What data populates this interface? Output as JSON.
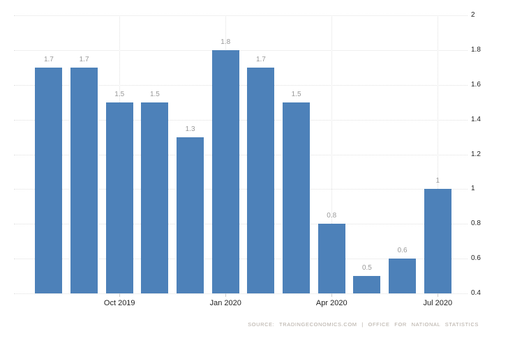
{
  "chart_data": {
    "type": "bar",
    "title": "",
    "xlabel": "",
    "ylabel": "",
    "values": [
      1.7,
      1.7,
      1.5,
      1.5,
      1.3,
      1.8,
      1.7,
      1.5,
      0.8,
      0.5,
      0.6,
      1
    ],
    "bar_labels": [
      "1.7",
      "1.7",
      "1.5",
      "1.5",
      "1.3",
      "1.8",
      "1.7",
      "1.5",
      "0.8",
      "0.5",
      "0.6",
      "1"
    ],
    "x_ticks": [
      {
        "index": 2,
        "label": "Oct 2019"
      },
      {
        "index": 5,
        "label": "Jan 2020"
      },
      {
        "index": 8,
        "label": "Apr 2020"
      },
      {
        "index": 11,
        "label": "Jul 2020"
      }
    ],
    "y_ticks": [
      {
        "value": 0.4,
        "label": "0.4"
      },
      {
        "value": 0.6,
        "label": "0.6"
      },
      {
        "value": 0.8,
        "label": "0.8"
      },
      {
        "value": 1,
        "label": "1"
      },
      {
        "value": 1.2,
        "label": "1.2"
      },
      {
        "value": 1.4,
        "label": "1.4"
      },
      {
        "value": 1.6,
        "label": "1.6"
      },
      {
        "value": 1.8,
        "label": "1.8"
      },
      {
        "value": 2,
        "label": "2"
      }
    ],
    "ylim": [
      0.4,
      2
    ],
    "grid": "dotted",
    "legend": "none",
    "colors": {
      "bar": "#4D81B9",
      "gridline": "#E0E0E0",
      "value_label": "#999999",
      "axis_label": "#222222",
      "source_text": "#B3ABA3"
    },
    "source": "SOURCE: TRADINGECONOMICS.COM | OFFICE FOR NATIONAL STATISTICS"
  }
}
